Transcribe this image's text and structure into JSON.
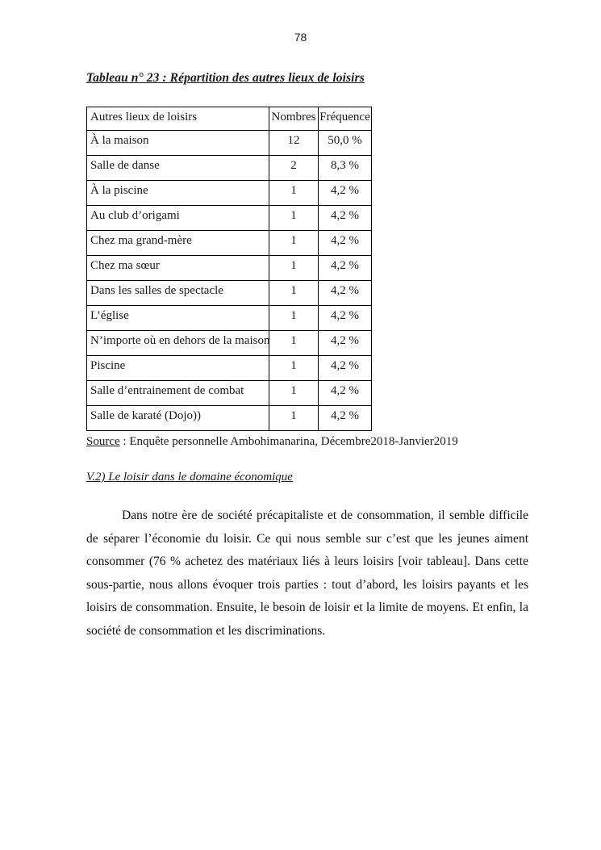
{
  "page": {
    "number": "78"
  },
  "table_section": {
    "title": "Tableau n° 23 : Répartition des autres lieux de loisirs",
    "table": {
      "headers": [
        "Autres lieux de loisirs",
        "Nombres",
        "Fréquence"
      ],
      "rows": [
        [
          "À la maison",
          "12",
          "50,0 %"
        ],
        [
          "Salle de danse",
          "2",
          "8,3 %"
        ],
        [
          "À la piscine",
          "1",
          "4,2 %"
        ],
        [
          "Au club d’origami",
          "1",
          "4,2 %"
        ],
        [
          "Chez ma grand-mère",
          "1",
          "4,2 %"
        ],
        [
          "Chez ma sœur",
          "1",
          "4,2 %"
        ],
        [
          "Dans les salles de spectacle",
          "1",
          "4,2 %"
        ],
        [
          "L’église",
          "1",
          "4,2 %"
        ],
        [
          "N’importe où en dehors de la maison",
          "1",
          "4,2 %"
        ],
        [
          "Piscine",
          "1",
          "4,2 %"
        ],
        [
          "Salle d’entrainement de combat",
          "1",
          "4,2 %"
        ],
        [
          "Salle de karaté (Dojo))",
          "1",
          "4,2 %"
        ]
      ]
    },
    "source_label": "Source",
    "source_text": " : Enquête personnelle Ambohimanarina, Décembre2018-Janvier2019"
  },
  "section": {
    "heading": "V.2) Le loisir dans le domaine économique",
    "paragraph": "Dans notre ère de société précapitaliste et de consommation, il semble difficile de séparer l’économie du loisir. Ce qui nous semble sur c’est que les jeunes aiment consommer (76 % achetez des matériaux liés à leurs loisirs [voir tableau]. Dans cette sous-partie, nous allons évoquer trois parties : tout d’abord, les loisirs payants et les loisirs de consommation. Ensuite, le besoin de loisir et la limite de moyens. Et enfin, la société de consommation et les discriminations."
  }
}
